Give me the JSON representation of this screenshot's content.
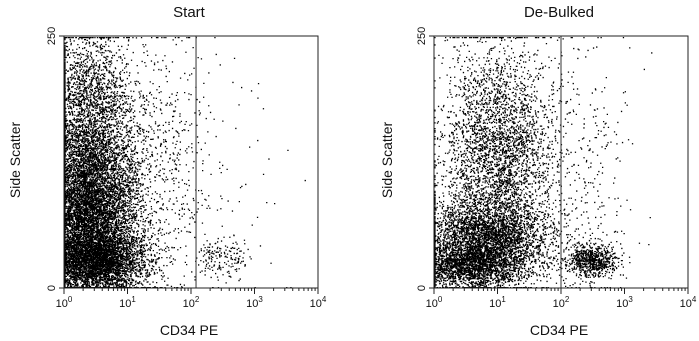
{
  "chart_data": [
    {
      "type": "scatter",
      "title": "Start",
      "xlabel": "CD34 PE",
      "ylabel": "Side Scatter",
      "x_scale": "log",
      "xlim": [
        1,
        10000
      ],
      "ylim": [
        0,
        250
      ],
      "x_tick_labels": [
        {
          "base": "10",
          "exp": "0"
        },
        {
          "base": "10",
          "exp": "1"
        },
        {
          "base": "10",
          "exp": "2"
        },
        {
          "base": "10",
          "exp": "3"
        },
        {
          "base": "10",
          "exp": "4"
        }
      ],
      "y_tick_labels": [
        "0",
        "250"
      ],
      "gate_x": 120,
      "grid": false,
      "populations": [
        {
          "x_center": 2.5,
          "x_spread_decades": 0.38,
          "y_center": 75,
          "y_spread": 50,
          "count": 9500
        },
        {
          "x_center": 3.5,
          "x_spread_decades": 0.4,
          "y_center": 28,
          "y_spread": 14,
          "count": 2600
        },
        {
          "x_center": 2.2,
          "x_spread_decades": 0.35,
          "y_center": 190,
          "y_spread": 35,
          "count": 1600
        },
        {
          "x_center": 30,
          "x_spread_decades": 0.4,
          "y_center": 120,
          "y_spread": 65,
          "count": 650
        },
        {
          "x_center": 300,
          "x_spread_decades": 0.22,
          "y_center": 30,
          "y_spread": 9,
          "count": 170
        },
        {
          "x_center": 400,
          "x_spread_decades": 0.5,
          "y_center": 110,
          "y_spread": 75,
          "count": 50
        }
      ]
    },
    {
      "type": "scatter",
      "title": "De-Bulked",
      "xlabel": "CD34 PE",
      "ylabel": "Side Scatter",
      "x_scale": "log",
      "xlim": [
        1,
        10000
      ],
      "ylim": [
        0,
        250
      ],
      "x_tick_labels": [
        {
          "base": "10",
          "exp": "0"
        },
        {
          "base": "10",
          "exp": "1"
        },
        {
          "base": "10",
          "exp": "2"
        },
        {
          "base": "10",
          "exp": "3"
        },
        {
          "base": "10",
          "exp": "4"
        }
      ],
      "y_tick_labels": [
        "0",
        "250"
      ],
      "gate_x": 100,
      "grid": false,
      "populations": [
        {
          "x_center": 6,
          "x_spread_decades": 0.5,
          "y_center": 45,
          "y_spread": 22,
          "count": 3800
        },
        {
          "x_center": 3,
          "x_spread_decades": 0.4,
          "y_center": 22,
          "y_spread": 10,
          "count": 1400
        },
        {
          "x_center": 10,
          "x_spread_decades": 0.45,
          "y_center": 130,
          "y_spread": 55,
          "count": 3500
        },
        {
          "x_center": 300,
          "x_spread_decades": 0.2,
          "y_center": 28,
          "y_spread": 8,
          "count": 750
        },
        {
          "x_center": 250,
          "x_spread_decades": 0.35,
          "y_center": 110,
          "y_spread": 75,
          "count": 260
        }
      ]
    }
  ]
}
